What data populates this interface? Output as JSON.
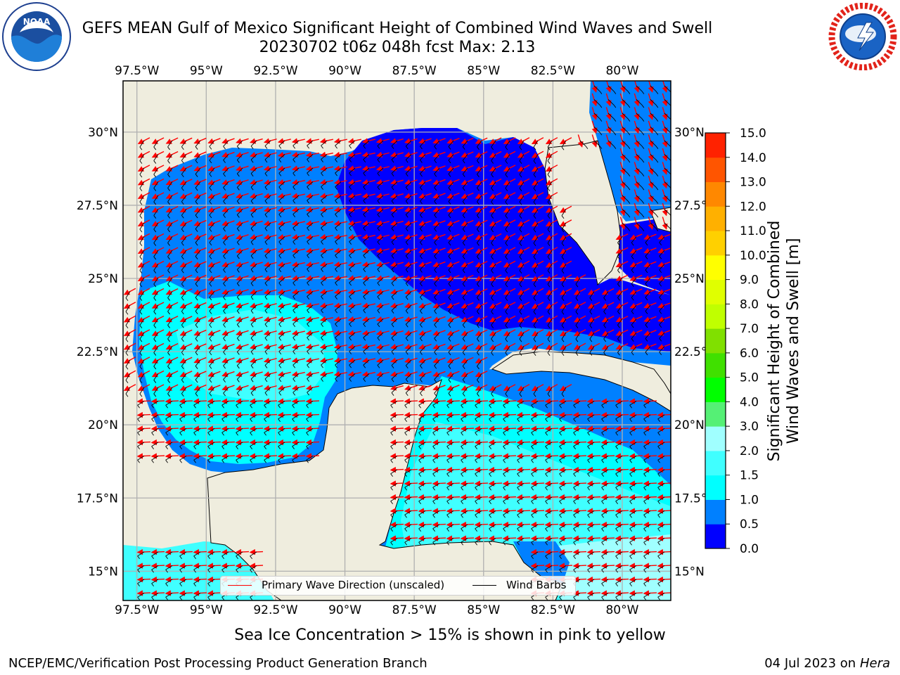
{
  "title": {
    "line1": "GEFS MEAN Gulf of Mexico Significant Height of Combined Wind Waves and Swell",
    "line2": "20230702 t06z 048h fcst   Max: 2.13"
  },
  "logos": {
    "left": "noaa-logo",
    "right": "national-weather-service-logo"
  },
  "map": {
    "lon_ticks": [
      "97.5°W",
      "95°W",
      "92.5°W",
      "90°W",
      "87.5°W",
      "85°W",
      "82.5°W",
      "80°W"
    ],
    "lon_values": [
      -97.5,
      -95,
      -92.5,
      -90,
      -87.5,
      -85,
      -82.5,
      -80
    ],
    "lat_ticks": [
      "30°N",
      "27.5°N",
      "25°N",
      "22.5°N",
      "20°N",
      "17.5°N",
      "15°N"
    ],
    "lat_values": [
      30,
      27.5,
      25,
      22.5,
      20,
      17.5,
      15
    ],
    "lon_range": [
      -98,
      -78.25
    ],
    "lat_range": [
      14,
      31.75
    ],
    "colors": {
      "land": "#efedde",
      "grid": "#b0b0b0",
      "wave_arrow": "#ff0000",
      "wind_barb": "#000000"
    }
  },
  "colorbar": {
    "levels": [
      "0.0",
      "0.5",
      "1.0",
      "1.5",
      "2.0",
      "3.0",
      "4.0",
      "5.0",
      "6.0",
      "7.0",
      "8.0",
      "9.0",
      "10.0",
      "11.0",
      "12.0",
      "13.0",
      "14.0",
      "15.0"
    ],
    "colors": [
      "#0000ff",
      "#0080ff",
      "#00ffff",
      "#40ffff",
      "#a0ffff",
      "#55f075",
      "#00ff00",
      "#40e000",
      "#80e000",
      "#c0ff00",
      "#e0ff00",
      "#ffff00",
      "#ffd000",
      "#ffb000",
      "#ff8800",
      "#ff5500",
      "#ff2200"
    ],
    "label_line1": "Significant Height of Combined",
    "label_line2": "Wind Waves and Swell [m]"
  },
  "legend": {
    "wave": "Primary Wave Direction (unscaled)",
    "wind": "Wind Barbs"
  },
  "note": "Sea Ice Concentration > 15% is shown in pink to yellow",
  "footer": {
    "left": "NCEP/EMC/Verification Post Processing Product Generation Branch",
    "right_prefix": "04 Jul 2023 on ",
    "right_host": "Hera"
  }
}
